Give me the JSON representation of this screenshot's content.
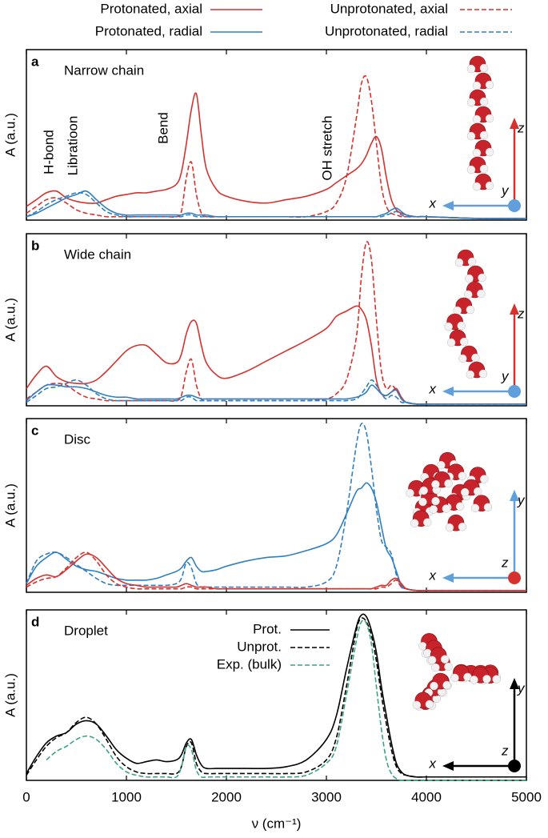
{
  "chart_data": [
    {
      "type": "line",
      "label": "a",
      "title": "Narrow chain",
      "ylabel": "A (a.u.)",
      "legend": "top",
      "annotations": [
        "H-bond",
        "Libratioon",
        "Bend",
        "OH stretch"
      ],
      "inset_axes": {
        "horizontal": "x",
        "vertical": "z",
        "point": "y",
        "horizontal_color": "#5f9fdc",
        "vertical_color": "#d7312e",
        "point_color": "#5f9fdc"
      },
      "xlim": [
        0,
        5000
      ],
      "ylim": [
        0,
        1
      ],
      "x": [
        0,
        100,
        200,
        300,
        400,
        500,
        600,
        700,
        800,
        900,
        1000,
        1100,
        1200,
        1300,
        1400,
        1500,
        1550,
        1600,
        1650,
        1700,
        1750,
        1800,
        1900,
        2000,
        2200,
        2400,
        2600,
        2800,
        3000,
        3100,
        3200,
        3300,
        3350,
        3400,
        3450,
        3500,
        3550,
        3600,
        3650,
        3700,
        3750,
        3800,
        3900,
        4000,
        4500,
        5000
      ],
      "series": [
        {
          "name": "Protonated, axial",
          "color": "#d7312e",
          "dash": false,
          "values": [
            0.08,
            0.12,
            0.16,
            0.17,
            0.13,
            0.11,
            0.1,
            0.1,
            0.12,
            0.14,
            0.15,
            0.16,
            0.16,
            0.17,
            0.18,
            0.21,
            0.28,
            0.45,
            0.65,
            0.74,
            0.5,
            0.3,
            0.18,
            0.14,
            0.11,
            0.1,
            0.12,
            0.14,
            0.18,
            0.22,
            0.26,
            0.3,
            0.33,
            0.38,
            0.45,
            0.49,
            0.42,
            0.25,
            0.12,
            0.06,
            0.04,
            0.03,
            0.02,
            0.02,
            0.01,
            0.01
          ]
        },
        {
          "name": "Unprotonated, axial",
          "color": "#d7312e",
          "dash": true,
          "values": [
            0.04,
            0.08,
            0.12,
            0.13,
            0.1,
            0.06,
            0.04,
            0.03,
            0.02,
            0.02,
            0.02,
            0.02,
            0.02,
            0.02,
            0.02,
            0.02,
            0.05,
            0.25,
            0.34,
            0.15,
            0.04,
            0.02,
            0.02,
            0.02,
            0.02,
            0.02,
            0.02,
            0.02,
            0.05,
            0.1,
            0.25,
            0.6,
            0.8,
            0.84,
            0.7,
            0.45,
            0.2,
            0.08,
            0.04,
            0.03,
            0.02,
            0.02,
            0.02,
            0.02,
            0.01,
            0.01
          ]
        },
        {
          "name": "Protonated, radial",
          "color": "#2f7fc1",
          "dash": false,
          "values": [
            0.02,
            0.04,
            0.07,
            0.1,
            0.13,
            0.15,
            0.17,
            0.12,
            0.07,
            0.04,
            0.03,
            0.03,
            0.03,
            0.03,
            0.03,
            0.03,
            0.03,
            0.04,
            0.04,
            0.03,
            0.03,
            0.03,
            0.02,
            0.02,
            0.02,
            0.02,
            0.02,
            0.02,
            0.02,
            0.02,
            0.02,
            0.02,
            0.02,
            0.02,
            0.02,
            0.02,
            0.03,
            0.04,
            0.06,
            0.07,
            0.05,
            0.03,
            0.02,
            0.02,
            0.01,
            0.01
          ]
        },
        {
          "name": "Unprotonated, radial",
          "color": "#2f7fc1",
          "dash": true,
          "values": [
            0.02,
            0.05,
            0.09,
            0.12,
            0.14,
            0.16,
            0.15,
            0.1,
            0.05,
            0.03,
            0.02,
            0.02,
            0.02,
            0.02,
            0.02,
            0.02,
            0.02,
            0.03,
            0.03,
            0.02,
            0.02,
            0.02,
            0.02,
            0.02,
            0.02,
            0.02,
            0.02,
            0.02,
            0.02,
            0.02,
            0.02,
            0.02,
            0.02,
            0.02,
            0.02,
            0.02,
            0.02,
            0.03,
            0.04,
            0.05,
            0.03,
            0.02,
            0.02,
            0.02,
            0.01,
            0.01
          ]
        }
      ]
    },
    {
      "type": "line",
      "label": "b",
      "title": "Wide chain",
      "ylabel": "A (a.u.)",
      "inset_axes": {
        "horizontal": "x",
        "vertical": "z",
        "point": "y",
        "horizontal_color": "#5f9fdc",
        "vertical_color": "#d7312e",
        "point_color": "#5f9fdc"
      },
      "xlim": [
        0,
        5000
      ],
      "ylim": [
        0,
        1
      ],
      "x": [
        0,
        100,
        200,
        300,
        400,
        500,
        600,
        700,
        800,
        900,
        1000,
        1100,
        1200,
        1300,
        1400,
        1500,
        1550,
        1600,
        1650,
        1700,
        1750,
        1800,
        1900,
        2000,
        2200,
        2400,
        2600,
        2800,
        3000,
        3100,
        3200,
        3300,
        3350,
        3400,
        3450,
        3500,
        3550,
        3600,
        3650,
        3700,
        3750,
        3800,
        3900,
        4000,
        4500,
        5000
      ],
      "series": [
        {
          "color": "#d7312e",
          "dash": false,
          "values": [
            0.1,
            0.18,
            0.23,
            0.17,
            0.14,
            0.13,
            0.13,
            0.15,
            0.2,
            0.26,
            0.32,
            0.35,
            0.35,
            0.3,
            0.25,
            0.25,
            0.3,
            0.42,
            0.49,
            0.48,
            0.35,
            0.25,
            0.18,
            0.16,
            0.2,
            0.26,
            0.32,
            0.38,
            0.45,
            0.52,
            0.55,
            0.58,
            0.56,
            0.5,
            0.35,
            0.15,
            0.07,
            0.06,
            0.08,
            0.1,
            0.05,
            0.02,
            0.01,
            0.01,
            0.01,
            0.01
          ]
        },
        {
          "color": "#d7312e",
          "dash": true,
          "values": [
            0.04,
            0.08,
            0.12,
            0.13,
            0.12,
            0.08,
            0.05,
            0.04,
            0.03,
            0.03,
            0.03,
            0.03,
            0.03,
            0.03,
            0.03,
            0.03,
            0.06,
            0.2,
            0.27,
            0.12,
            0.04,
            0.03,
            0.03,
            0.03,
            0.03,
            0.03,
            0.03,
            0.03,
            0.04,
            0.07,
            0.15,
            0.4,
            0.75,
            0.95,
            0.85,
            0.5,
            0.2,
            0.1,
            0.12,
            0.09,
            0.04,
            0.02,
            0.01,
            0.01,
            0.01,
            0.01
          ]
        },
        {
          "color": "#2f7fc1",
          "dash": false,
          "values": [
            0.03,
            0.08,
            0.12,
            0.12,
            0.11,
            0.11,
            0.1,
            0.08,
            0.06,
            0.05,
            0.05,
            0.04,
            0.04,
            0.04,
            0.04,
            0.04,
            0.05,
            0.06,
            0.06,
            0.05,
            0.04,
            0.04,
            0.04,
            0.04,
            0.04,
            0.04,
            0.04,
            0.04,
            0.04,
            0.04,
            0.04,
            0.05,
            0.06,
            0.08,
            0.12,
            0.1,
            0.07,
            0.06,
            0.08,
            0.09,
            0.04,
            0.02,
            0.01,
            0.01,
            0.01,
            0.01
          ]
        },
        {
          "color": "#2f7fc1",
          "dash": true,
          "values": [
            0.02,
            0.06,
            0.1,
            0.11,
            0.13,
            0.15,
            0.12,
            0.07,
            0.04,
            0.03,
            0.03,
            0.03,
            0.03,
            0.03,
            0.03,
            0.03,
            0.03,
            0.05,
            0.05,
            0.03,
            0.03,
            0.03,
            0.03,
            0.03,
            0.03,
            0.03,
            0.03,
            0.03,
            0.03,
            0.03,
            0.03,
            0.04,
            0.07,
            0.11,
            0.15,
            0.12,
            0.07,
            0.04,
            0.06,
            0.05,
            0.02,
            0.02,
            0.01,
            0.01,
            0.01,
            0.01
          ]
        }
      ]
    },
    {
      "type": "line",
      "label": "c",
      "title": "Disc",
      "ylabel": "A (a.u.)",
      "inset_axes": {
        "horizontal": "x",
        "vertical": "y",
        "point": "z",
        "horizontal_color": "#5f9fdc",
        "vertical_color": "#5f9fdc",
        "point_color": "#d7312e"
      },
      "xlim": [
        0,
        5000
      ],
      "ylim": [
        0,
        1
      ],
      "x": [
        0,
        100,
        200,
        300,
        400,
        500,
        600,
        700,
        800,
        900,
        1000,
        1100,
        1200,
        1300,
        1400,
        1500,
        1550,
        1600,
        1650,
        1700,
        1750,
        1800,
        1900,
        2000,
        2200,
        2400,
        2600,
        2800,
        3000,
        3100,
        3200,
        3300,
        3350,
        3400,
        3450,
        3500,
        3550,
        3600,
        3650,
        3700,
        3750,
        3800,
        3900,
        4000,
        4500,
        5000
      ],
      "series": [
        {
          "color": "#2f7fc1",
          "dash": false,
          "values": [
            0.05,
            0.15,
            0.2,
            0.23,
            0.19,
            0.15,
            0.13,
            0.12,
            0.1,
            0.08,
            0.07,
            0.07,
            0.07,
            0.08,
            0.1,
            0.12,
            0.14,
            0.18,
            0.2,
            0.15,
            0.12,
            0.12,
            0.13,
            0.15,
            0.18,
            0.2,
            0.21,
            0.24,
            0.28,
            0.33,
            0.45,
            0.58,
            0.6,
            0.63,
            0.6,
            0.52,
            0.38,
            0.25,
            0.2,
            0.12,
            0.04,
            0.02,
            0.01,
            0.01,
            0.01,
            0.01
          ]
        },
        {
          "color": "#2f7fc1",
          "dash": true,
          "values": [
            0.05,
            0.18,
            0.22,
            0.23,
            0.2,
            0.16,
            0.12,
            0.08,
            0.05,
            0.04,
            0.04,
            0.04,
            0.04,
            0.04,
            0.04,
            0.05,
            0.08,
            0.17,
            0.14,
            0.05,
            0.03,
            0.03,
            0.03,
            0.03,
            0.03,
            0.03,
            0.03,
            0.03,
            0.06,
            0.15,
            0.45,
            0.85,
            0.97,
            0.92,
            0.72,
            0.48,
            0.3,
            0.26,
            0.22,
            0.1,
            0.03,
            0.02,
            0.01,
            0.01,
            0.01,
            0.01
          ]
        },
        {
          "color": "#d7312e",
          "dash": false,
          "values": [
            0.04,
            0.08,
            0.1,
            0.09,
            0.13,
            0.18,
            0.22,
            0.2,
            0.14,
            0.08,
            0.05,
            0.04,
            0.03,
            0.03,
            0.03,
            0.03,
            0.04,
            0.05,
            0.04,
            0.03,
            0.03,
            0.03,
            0.02,
            0.02,
            0.02,
            0.02,
            0.02,
            0.02,
            0.02,
            0.02,
            0.02,
            0.02,
            0.02,
            0.02,
            0.02,
            0.03,
            0.04,
            0.04,
            0.07,
            0.08,
            0.05,
            0.02,
            0.01,
            0.01,
            0.01,
            0.01
          ]
        },
        {
          "color": "#d7312e",
          "dash": true,
          "values": [
            0.03,
            0.06,
            0.08,
            0.09,
            0.14,
            0.2,
            0.23,
            0.18,
            0.1,
            0.05,
            0.03,
            0.02,
            0.02,
            0.02,
            0.02,
            0.02,
            0.02,
            0.03,
            0.03,
            0.02,
            0.02,
            0.02,
            0.02,
            0.02,
            0.02,
            0.02,
            0.02,
            0.02,
            0.02,
            0.02,
            0.02,
            0.02,
            0.02,
            0.02,
            0.02,
            0.02,
            0.03,
            0.03,
            0.05,
            0.07,
            0.03,
            0.02,
            0.01,
            0.01,
            0.01,
            0.01
          ]
        }
      ]
    },
    {
      "type": "line",
      "label": "d",
      "title": "Droplet",
      "ylabel": "A (a.u.)",
      "xlabel": "ν (cm⁻¹)",
      "legend": "upper center",
      "inset_axes": {
        "horizontal": "x",
        "vertical": "y",
        "point": "z",
        "horizontal_color": "#000000",
        "vertical_color": "#000000",
        "point_color": "#000000"
      },
      "xlim": [
        0,
        5000
      ],
      "ylim": [
        0,
        1
      ],
      "xticks": [
        0,
        1000,
        2000,
        3000,
        4000,
        5000
      ],
      "x": [
        0,
        100,
        200,
        300,
        400,
        500,
        600,
        700,
        800,
        900,
        1000,
        1100,
        1200,
        1300,
        1400,
        1500,
        1550,
        1600,
        1650,
        1700,
        1750,
        1800,
        1900,
        2000,
        2200,
        2400,
        2600,
        2800,
        3000,
        3100,
        3200,
        3300,
        3350,
        3400,
        3450,
        3500,
        3550,
        3600,
        3650,
        3700,
        3750,
        3800,
        3900,
        4000,
        4500,
        5000
      ],
      "series": [
        {
          "name": "Prot.",
          "color": "#000000",
          "dash": false,
          "values": [
            0.04,
            0.14,
            0.22,
            0.26,
            0.28,
            0.33,
            0.35,
            0.33,
            0.26,
            0.18,
            0.13,
            0.1,
            0.11,
            0.12,
            0.11,
            0.12,
            0.15,
            0.22,
            0.24,
            0.15,
            0.09,
            0.07,
            0.07,
            0.07,
            0.07,
            0.07,
            0.08,
            0.12,
            0.24,
            0.38,
            0.65,
            0.9,
            0.97,
            0.96,
            0.88,
            0.75,
            0.55,
            0.38,
            0.22,
            0.1,
            0.05,
            0.03,
            0.02,
            0.02,
            0.02,
            0.02
          ]
        },
        {
          "name": "Unprot.",
          "color": "#000000",
          "dash": true,
          "values": [
            0.03,
            0.12,
            0.2,
            0.25,
            0.28,
            0.34,
            0.37,
            0.33,
            0.24,
            0.14,
            0.08,
            0.05,
            0.04,
            0.04,
            0.04,
            0.04,
            0.08,
            0.2,
            0.22,
            0.1,
            0.05,
            0.04,
            0.04,
            0.04,
            0.04,
            0.04,
            0.04,
            0.05,
            0.12,
            0.25,
            0.55,
            0.88,
            0.95,
            0.93,
            0.85,
            0.7,
            0.5,
            0.33,
            0.18,
            0.08,
            0.04,
            0.03,
            0.02,
            0.02,
            0.02,
            0.02
          ]
        },
        {
          "name": "Exp. (bulk)",
          "color": "#3aa57c",
          "dash": true,
          "values": [
            null,
            null,
            0.12,
            0.17,
            0.2,
            0.24,
            0.26,
            0.24,
            0.18,
            0.1,
            0.05,
            0.03,
            0.02,
            0.02,
            0.02,
            0.02,
            0.08,
            0.2,
            0.18,
            0.06,
            0.02,
            0.02,
            0.02,
            0.02,
            0.02,
            0.02,
            0.02,
            0.03,
            0.1,
            0.2,
            0.5,
            0.82,
            0.93,
            0.92,
            0.8,
            0.55,
            0.3,
            0.12,
            0.04,
            0.01,
            0,
            0,
            0,
            0,
            0,
            0
          ]
        }
      ]
    }
  ]
}
